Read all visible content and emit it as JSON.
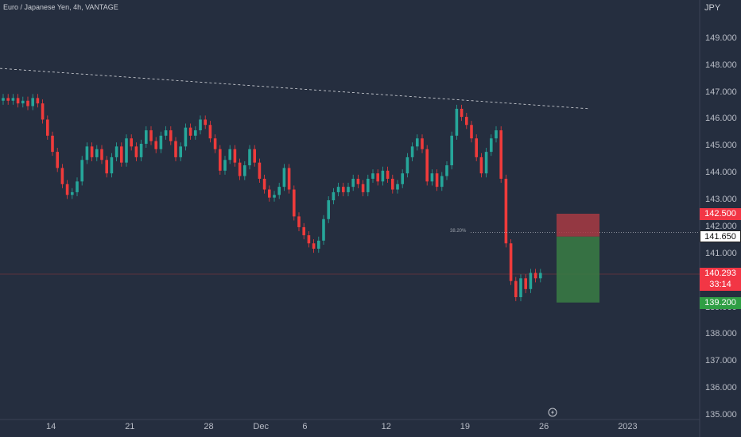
{
  "header": {
    "symbol": "Euro / Japanese Yen, 4h, VANTAGE"
  },
  "axis": {
    "unit": "JPY"
  },
  "colors": {
    "background": "#252e3f",
    "up": "#26a69a",
    "down": "#ef3b3b",
    "stop_zone": "#a83a43",
    "target_zone": "#3a7d44",
    "axis_line": "#3a4256"
  },
  "chart_data": {
    "type": "candlestick",
    "title": "Euro / Japanese Yen, 4h, VANTAGE",
    "ylabel": "JPY",
    "ylim": [
      135.0,
      150.0
    ],
    "y_ticks": [
      "149.000",
      "148.000",
      "147.000",
      "146.000",
      "145.000",
      "144.000",
      "143.000",
      "142.000",
      "141.000",
      "140.000",
      "139.000",
      "138.000",
      "137.000",
      "136.000",
      "135.000"
    ],
    "x_ticks": [
      "14",
      "21",
      "28",
      "Dec",
      "6",
      "12",
      "19",
      "26",
      "2023"
    ],
    "x_tick_index": [
      10,
      26,
      42,
      52,
      62,
      78,
      94,
      110,
      126
    ],
    "candles_close": [
      146.8,
      146.7,
      146.8,
      146.6,
      146.7,
      146.5,
      146.8,
      146.6,
      146.0,
      145.4,
      144.8,
      144.2,
      143.6,
      143.2,
      143.3,
      143.7,
      144.5,
      145.0,
      144.6,
      144.9,
      144.5,
      144.0,
      144.6,
      145.0,
      144.4,
      145.3,
      145.0,
      144.6,
      145.1,
      145.6,
      145.2,
      144.9,
      145.4,
      145.6,
      145.2,
      144.6,
      145.0,
      145.7,
      145.4,
      145.6,
      146.0,
      145.8,
      145.3,
      144.9,
      144.1,
      144.5,
      144.9,
      144.4,
      143.9,
      144.3,
      144.9,
      144.4,
      143.8,
      143.4,
      143.1,
      143.2,
      143.5,
      144.2,
      143.4,
      142.4,
      142.0,
      141.7,
      141.4,
      141.2,
      141.5,
      142.3,
      143.0,
      143.3,
      143.5,
      143.3,
      143.5,
      143.8,
      143.6,
      143.3,
      143.8,
      144.0,
      143.7,
      144.1,
      143.8,
      143.4,
      143.6,
      144.0,
      144.6,
      145.0,
      145.3,
      144.9,
      143.7,
      144.0,
      143.5,
      143.9,
      144.3,
      145.4,
      146.4,
      146.1,
      145.8,
      145.3,
      144.6,
      144.0,
      144.8,
      145.3,
      145.6,
      143.8,
      141.4,
      140.0,
      139.4,
      140.1,
      139.7,
      140.3,
      140.1,
      140.3
    ],
    "trendline": {
      "start": {
        "x_index": 0,
        "y": 147.9
      },
      "end": {
        "x_index": 108,
        "y": 146.4
      }
    },
    "fib_level": {
      "label": "38.20%",
      "value": 141.8
    },
    "position": {
      "type": "short",
      "stop": "142.500",
      "entry": "141.650",
      "target": "139.200"
    },
    "last_price": "140.293",
    "countdown": "33:14"
  }
}
